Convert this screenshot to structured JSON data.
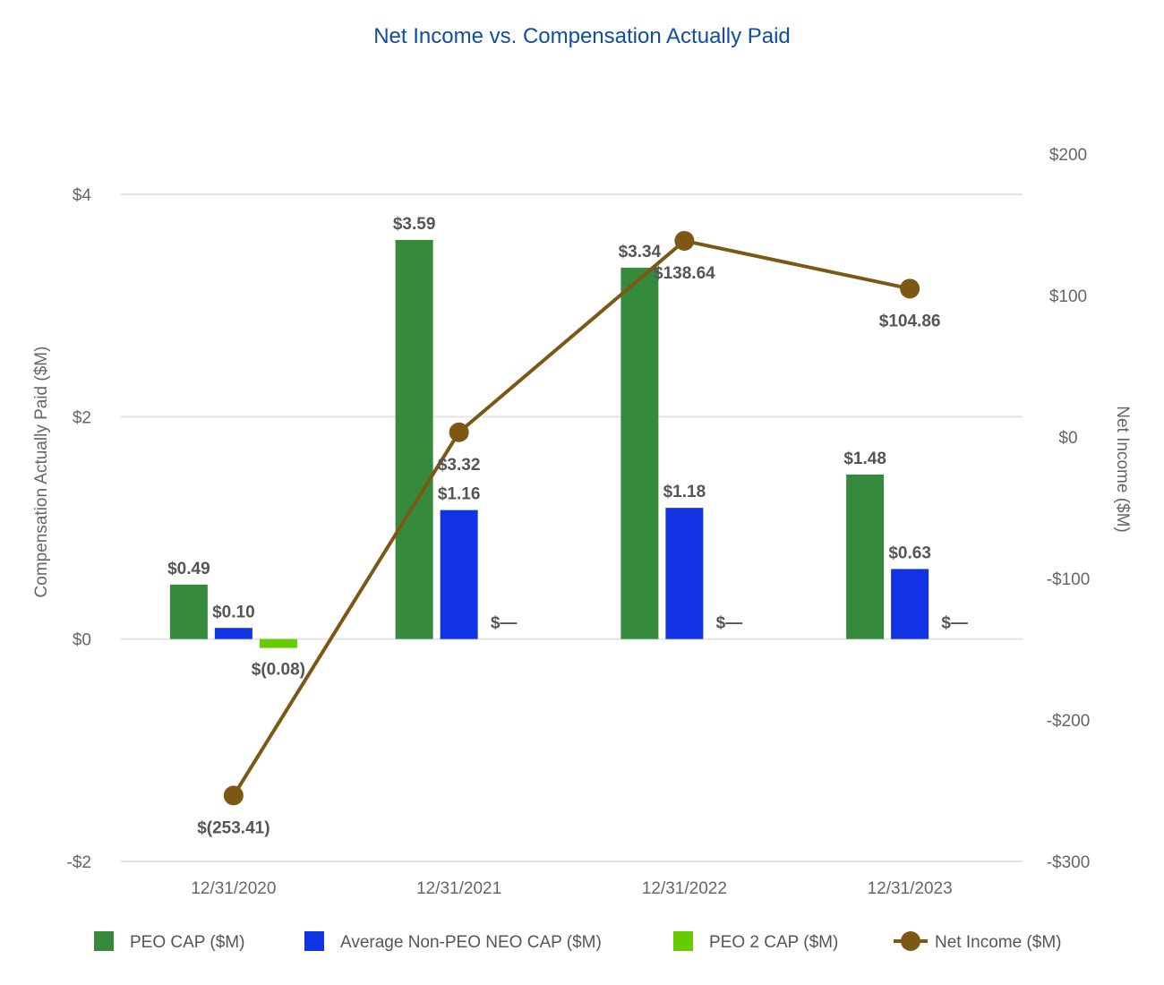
{
  "chart_data": {
    "type": "bar",
    "title": "Net Income vs. Compensation Actually Paid",
    "categories": [
      "12/31/2020",
      "12/31/2021",
      "12/31/2022",
      "12/31/2023"
    ],
    "y_left": {
      "label": "Compensation Actually Paid ($M)",
      "range": [
        -2,
        4
      ],
      "ticks": [
        4,
        2,
        0,
        -2
      ],
      "tick_labels": [
        "$4",
        "$2",
        "$0",
        "-$2"
      ]
    },
    "y_right": {
      "label": "Net Income ($M)",
      "range": [
        -300,
        200
      ],
      "ticks": [
        200,
        100,
        0,
        -100,
        -200,
        -300
      ],
      "tick_labels": [
        "$200",
        "$100",
        "$0",
        "-$100",
        "-$200",
        "-$300"
      ]
    },
    "grid": true,
    "legend_position": "bottom",
    "series": [
      {
        "name": "PEO CAP ($M)",
        "type": "bar",
        "axis": "left",
        "color": "#358a3c",
        "values": [
          0.49,
          3.59,
          3.34,
          1.48
        ],
        "labels": [
          "$0.49",
          "$3.59",
          "$3.34",
          "$1.48"
        ]
      },
      {
        "name": "Average Non-PEO NEO CAP ($M)",
        "type": "bar",
        "axis": "left",
        "color": "#1133e3",
        "values": [
          0.1,
          1.16,
          1.18,
          0.63
        ],
        "labels": [
          "$0.10",
          "$1.16",
          "$1.18",
          "$0.63"
        ]
      },
      {
        "name": "PEO 2 CAP ($M)",
        "type": "bar",
        "axis": "left",
        "color": "#66cc00",
        "values": [
          -0.08,
          0,
          0,
          0
        ],
        "labels": [
          "$(0.08)",
          "$—",
          "$—",
          "$—"
        ]
      },
      {
        "name": "Net Income ($M)",
        "type": "line",
        "axis": "right",
        "color": "#7d5815",
        "values": [
          -253.41,
          3.32,
          138.64,
          104.86
        ],
        "labels": [
          "$(253.41)",
          "$3.32",
          "$138.64",
          "$104.86"
        ]
      }
    ]
  }
}
